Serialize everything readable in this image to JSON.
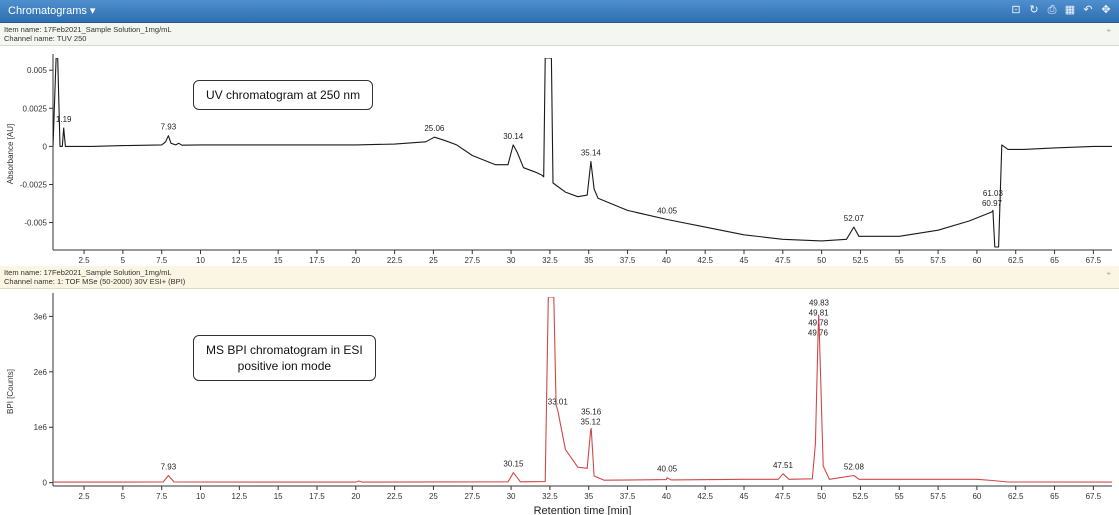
{
  "window": {
    "title": "Chromatograms",
    "dropdown_icon": "caret-down-icon",
    "toolbar_icons": [
      "layout-icon",
      "refresh-icon",
      "print-icon",
      "table-icon",
      "undo-icon",
      "move-icon"
    ],
    "toolbar_glyphs": [
      "⊡",
      "↻",
      "⎙",
      "▦",
      "↶",
      "✥"
    ],
    "pin_glyph": "⌖"
  },
  "colors": {
    "uv_trace": "#1a1a1a",
    "ms_trace": "#d04848",
    "header": "#3a7cc0"
  },
  "panels": {
    "uv": {
      "item_name": "Item name: 17Feb2021_Sample Solution_1mg/mL",
      "channel_name": "Channel name: TUV 250"
    },
    "ms": {
      "item_name": "Item name: 17Feb2021_Sample Solution_1mg/mL",
      "channel_name": "Channel name: 1: TOF MSe (50-2000) 30V ESI+ (BPI)"
    }
  },
  "chart_data": [
    {
      "type": "line",
      "name": "UV",
      "annotation": "UV chromatogram at 250 nm",
      "xlabel": "",
      "ylabel": "Absorbance [AU]",
      "xlim": [
        0.5,
        68.7
      ],
      "ylim": [
        -0.0068,
        0.0058
      ],
      "x_ticks": [
        2.5,
        5,
        7.5,
        10,
        12.5,
        15,
        17.5,
        20,
        22.5,
        25,
        27.5,
        30,
        32.5,
        35,
        37.5,
        40,
        42.5,
        45,
        47.5,
        50,
        52.5,
        55,
        57.5,
        60,
        62.5,
        65,
        67.5
      ],
      "x_tick_labels": [
        "2.5",
        "5",
        "7.5",
        "10",
        "12.5",
        "15",
        "17.5",
        "20",
        "22.5",
        "25",
        "27.5",
        "30",
        "32.5",
        "35",
        "37.5",
        "40",
        "42.5",
        "45",
        "47.5",
        "50",
        "52.5",
        "55",
        "57.5",
        "60",
        "62.5",
        "65",
        "67.5"
      ],
      "y_ticks": [
        0.005,
        0.0025,
        0,
        -0.0025,
        -0.005
      ],
      "y_tick_labels": [
        "0.005",
        "0.0025",
        "0",
        "-0.0025",
        "-0.005"
      ],
      "points": [
        [
          0.5,
          0.0
        ],
        [
          0.7,
          0.0058
        ],
        [
          0.8,
          0.0058
        ],
        [
          0.95,
          0.0
        ],
        [
          1.1,
          0.0
        ],
        [
          1.19,
          0.0012
        ],
        [
          1.3,
          0.0
        ],
        [
          3.0,
          0.0
        ],
        [
          5.0,
          5e-05
        ],
        [
          7.5,
          0.0001
        ],
        [
          7.75,
          0.0003
        ],
        [
          7.93,
          0.0007
        ],
        [
          8.1,
          0.0002
        ],
        [
          8.4,
          0.0001
        ],
        [
          8.6,
          0.0002
        ],
        [
          8.8,
          8e-05
        ],
        [
          10.0,
          0.0001
        ],
        [
          15.0,
          0.0001
        ],
        [
          20.0,
          0.0001
        ],
        [
          22.5,
          0.00015
        ],
        [
          24.5,
          0.0003
        ],
        [
          25.06,
          0.0006
        ],
        [
          25.7,
          0.0004
        ],
        [
          26.5,
          0.0001
        ],
        [
          27.5,
          -0.0006
        ],
        [
          29.0,
          -0.0012
        ],
        [
          29.8,
          -0.0012
        ],
        [
          30.14,
          0.0001
        ],
        [
          30.4,
          -0.0004
        ],
        [
          30.8,
          -0.0014
        ],
        [
          31.6,
          -0.0017
        ],
        [
          32.0,
          -0.0019
        ],
        [
          32.1,
          -0.002
        ],
        [
          32.2,
          0.0058
        ],
        [
          32.6,
          0.0058
        ],
        [
          32.7,
          -0.0024
        ],
        [
          33.5,
          -0.003
        ],
        [
          34.3,
          -0.0033
        ],
        [
          34.9,
          -0.0032
        ],
        [
          35.14,
          -0.001
        ],
        [
          35.35,
          -0.0028
        ],
        [
          35.6,
          -0.0034
        ],
        [
          37.5,
          -0.0042
        ],
        [
          40.05,
          -0.0048
        ],
        [
          42.5,
          -0.0053
        ],
        [
          45.0,
          -0.0058
        ],
        [
          47.5,
          -0.0061
        ],
        [
          50.0,
          -0.0062
        ],
        [
          51.6,
          -0.0061
        ],
        [
          52.07,
          -0.0053
        ],
        [
          52.4,
          -0.0059
        ],
        [
          55.0,
          -0.0059
        ],
        [
          57.5,
          -0.0055
        ],
        [
          59.5,
          -0.0049
        ],
        [
          60.97,
          -0.0043
        ],
        [
          61.03,
          -0.0042
        ],
        [
          61.15,
          -0.0066
        ],
        [
          61.4,
          -0.0066
        ],
        [
          61.6,
          0.0001
        ],
        [
          62.0,
          -0.0002
        ],
        [
          63.0,
          -0.0002
        ],
        [
          65.0,
          -0.0001
        ],
        [
          67.5,
          0.0
        ],
        [
          68.7,
          0.0
        ]
      ],
      "peak_labels": [
        {
          "x": 1.19,
          "y": 0.0012,
          "label": "1.19"
        },
        {
          "x": 7.93,
          "y": 0.0007,
          "label": "7.93"
        },
        {
          "x": 25.06,
          "y": 0.0006,
          "label": "25.06"
        },
        {
          "x": 30.14,
          "y": 0.0001,
          "label": "30.14"
        },
        {
          "x": 35.14,
          "y": -0.001,
          "label": "35.14"
        },
        {
          "x": 40.05,
          "y": -0.0048,
          "label": "40.05"
        },
        {
          "x": 52.07,
          "y": -0.0053,
          "label": "52.07"
        },
        {
          "x": 60.97,
          "y": -0.0043,
          "label": "60.97"
        },
        {
          "x": 61.03,
          "y": -0.0042,
          "label": "61.03"
        }
      ]
    },
    {
      "type": "line",
      "name": "MS BPI",
      "annotation": "MS BPI chromatogram in ESI\npositive ion mode",
      "xlabel": "Retention time [min]",
      "ylabel": "BPI [Counts]",
      "xlim": [
        0.5,
        68.7
      ],
      "ylim": [
        -60000,
        3350000
      ],
      "x_ticks": [
        2.5,
        5,
        7.5,
        10,
        12.5,
        15,
        17.5,
        20,
        22.5,
        25,
        27.5,
        30,
        32.5,
        35,
        37.5,
        40,
        42.5,
        45,
        47.5,
        50,
        52.5,
        55,
        57.5,
        60,
        62.5,
        65,
        67.5
      ],
      "x_tick_labels": [
        "2.5",
        "5",
        "7.5",
        "10",
        "12.5",
        "15",
        "17.5",
        "20",
        "22.5",
        "25",
        "27.5",
        "30",
        "32.5",
        "35",
        "37.5",
        "40",
        "42.5",
        "45",
        "47.5",
        "50",
        "52.5",
        "55",
        "57.5",
        "60",
        "62.5",
        "65",
        "67.5"
      ],
      "y_ticks": [
        0,
        1000000,
        2000000,
        3000000
      ],
      "y_tick_labels": [
        "0",
        "1e6",
        "2e6",
        "3e6"
      ],
      "points": [
        [
          0.5,
          10000
        ],
        [
          7.6,
          12000
        ],
        [
          7.93,
          130000
        ],
        [
          8.3,
          12000
        ],
        [
          20.0,
          10000
        ],
        [
          20.2,
          30000
        ],
        [
          20.4,
          10000
        ],
        [
          29.8,
          15000
        ],
        [
          30.15,
          180000
        ],
        [
          30.6,
          15000
        ],
        [
          32.2,
          20000
        ],
        [
          32.4,
          3350000
        ],
        [
          32.75,
          3350000
        ],
        [
          32.9,
          1400000
        ],
        [
          33.01,
          1300000
        ],
        [
          33.5,
          600000
        ],
        [
          34.3,
          280000
        ],
        [
          34.9,
          260000
        ],
        [
          35.12,
          940000
        ],
        [
          35.16,
          980000
        ],
        [
          35.35,
          120000
        ],
        [
          36.0,
          45000
        ],
        [
          40.0,
          55000
        ],
        [
          40.05,
          90000
        ],
        [
          40.3,
          50000
        ],
        [
          45.0,
          60000
        ],
        [
          47.2,
          60000
        ],
        [
          47.51,
          160000
        ],
        [
          47.9,
          60000
        ],
        [
          49.4,
          70000
        ],
        [
          49.6,
          700000
        ],
        [
          49.76,
          2550000
        ],
        [
          49.78,
          2750000
        ],
        [
          49.81,
          3020000
        ],
        [
          49.83,
          2900000
        ],
        [
          50.1,
          300000
        ],
        [
          50.5,
          60000
        ],
        [
          52.08,
          130000
        ],
        [
          52.4,
          60000
        ],
        [
          55.0,
          60000
        ],
        [
          60.0,
          60000
        ],
        [
          61.0,
          40000
        ],
        [
          62.0,
          12000
        ],
        [
          68.7,
          10000
        ]
      ],
      "peak_labels": [
        {
          "x": 7.93,
          "y": 130000,
          "label": "7.93"
        },
        {
          "x": 30.15,
          "y": 180000,
          "label": "30.15"
        },
        {
          "x": 33.01,
          "y": 1300000,
          "label": "33.01"
        },
        {
          "x": 35.12,
          "y": 940000,
          "label": "35.12"
        },
        {
          "x": 35.16,
          "y": 980000,
          "label": "35.16"
        },
        {
          "x": 40.05,
          "y": 90000,
          "label": "40.05"
        },
        {
          "x": 47.51,
          "y": 160000,
          "label": "47.51"
        },
        {
          "x": 49.76,
          "y": 2550000,
          "label": "49.76"
        },
        {
          "x": 49.78,
          "y": 2750000,
          "label": "49.78"
        },
        {
          "x": 49.81,
          "y": 3020000,
          "label": "49.81"
        },
        {
          "x": 49.83,
          "y": 2900000,
          "label": "49.83"
        },
        {
          "x": 52.08,
          "y": 130000,
          "label": "52.08"
        }
      ]
    }
  ]
}
